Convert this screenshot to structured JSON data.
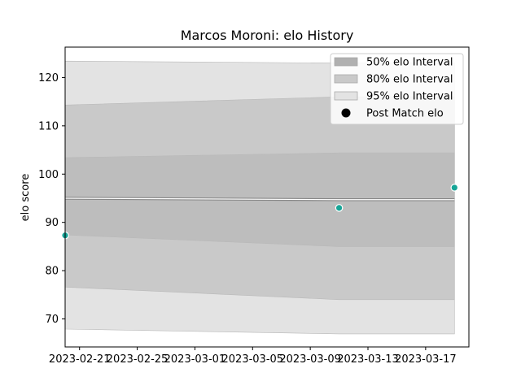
{
  "chart_data": {
    "type": "area",
    "title": "Marcos Moroni: elo History",
    "xlabel": "",
    "ylabel": "elo score",
    "x_ticks": [
      "2023-02-21",
      "2023-02-25",
      "2023-03-01",
      "2023-03-05",
      "2023-03-09",
      "2023-03-13",
      "2023-03-17"
    ],
    "y_ticks": [
      70,
      80,
      90,
      100,
      110,
      120
    ],
    "xlim": [
      "2023-02-20",
      "2023-03-20"
    ],
    "ylim": [
      64.2,
      126.3
    ],
    "x": [
      "2023-02-20",
      "2023-03-11",
      "2023-03-19"
    ],
    "mean": [
      95.0,
      94.7,
      94.7
    ],
    "bands": [
      {
        "name": "95% elo Interval",
        "lower": [
          67.9,
          66.9,
          66.9
        ],
        "upper": [
          123.4,
          123.0,
          123.0
        ],
        "color": "#e3e3e3"
      },
      {
        "name": "80% elo Interval",
        "lower": [
          76.6,
          74.0,
          74.0
        ],
        "upper": [
          114.3,
          116.0,
          116.0
        ],
        "color": "#c9c9c9"
      },
      {
        "name": "50% elo Interval",
        "lower": [
          87.4,
          85.0,
          85.0
        ],
        "upper": [
          103.4,
          104.4,
          104.4
        ],
        "color": "#bdbdbd"
      }
    ],
    "points": {
      "name": "Post Match elo",
      "x": [
        "2023-02-20",
        "2023-03-11",
        "2023-03-19"
      ],
      "y": [
        87.3,
        93.0,
        97.2
      ],
      "color": "#17a597"
    },
    "legend": {
      "position": "top-right",
      "entries": [
        {
          "label": "50% elo Interval",
          "color": "#b0b0b0"
        },
        {
          "label": "80% elo Interval",
          "color": "#c9c9c9"
        },
        {
          "label": "95% elo Interval",
          "color": "#e3e3e3"
        },
        {
          "label": "Post Match elo",
          "color": "#000000"
        }
      ]
    },
    "grid": false
  }
}
